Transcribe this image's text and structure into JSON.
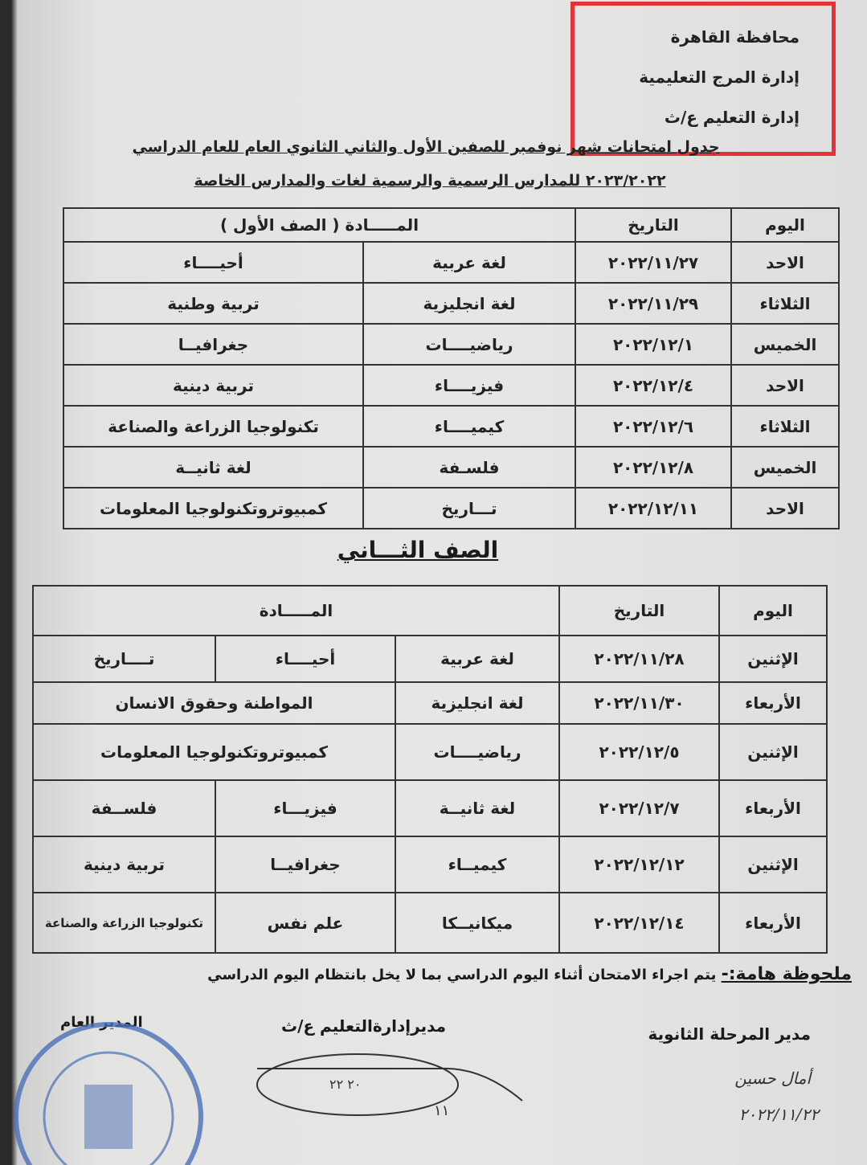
{
  "header": {
    "lines": [
      "محافظة القاهرة",
      "إدارة المرج التعليمية",
      "إدارة التعليم ع/ث"
    ],
    "highlight_color": "#e53238"
  },
  "title": {
    "line1": "جدول امتحانات شهر نوفمبر للصفين الأول والثاني الثانوي العام للعام الدراسي",
    "line2": "٢٠٢٣/٢٠٢٢ للمدارس الرسمية والرسمية لغات والمدارس الخاصة"
  },
  "table1": {
    "headers": {
      "day": "اليوم",
      "date": "التاريخ",
      "subject": "المـــــادة ( الصف الأول )"
    },
    "rows": [
      {
        "day": "الاحد",
        "date": "٢٠٢٢/١١/٢٧",
        "s1": "لغة عربية",
        "s2": "أحيــــاء"
      },
      {
        "day": "الثلاثاء",
        "date": "٢٠٢٢/١١/٢٩",
        "s1": "لغة انجليزية",
        "s2": "تربية وطنية"
      },
      {
        "day": "الخميس",
        "date": "٢٠٢٢/١٢/١",
        "s1": "رياضيــــات",
        "s2": "جغرافيــا"
      },
      {
        "day": "الاحد",
        "date": "٢٠٢٢/١٢/٤",
        "s1": "فيزيــــاء",
        "s2": "تربية دينية"
      },
      {
        "day": "الثلاثاء",
        "date": "٢٠٢٢/١٢/٦",
        "s1": "كيميــــاء",
        "s2": "تكنولوجيا الزراعة والصناعة"
      },
      {
        "day": "الخميس",
        "date": "٢٠٢٢/١٢/٨",
        "s1": "فلسـفة",
        "s2": "لغة ثانيــة"
      },
      {
        "day": "الاحد",
        "date": "٢٠٢٢/١٢/١١",
        "s1": "تـــاريخ",
        "s2": "كمبيوتروتكنولوجيا المعلومات"
      }
    ]
  },
  "section2_title": "الصف الثـــاني",
  "table2": {
    "headers": {
      "day": "اليوم",
      "date": "التاريخ",
      "subject": "المـــــادة"
    },
    "rows": [
      {
        "day": "الإثنين",
        "date": "٢٠٢٢/١١/٢٨",
        "cells": [
          "لغة عربية",
          "أحيــــاء",
          "تــــاريخ"
        ]
      },
      {
        "day": "الأربعاء",
        "date": "٢٠٢٢/١١/٣٠",
        "cells": [
          "لغة انجليزية",
          "المواطنة وحقوق الانسان"
        ]
      },
      {
        "day": "الإثنين",
        "date": "٢٠٢٢/١٢/٥",
        "cells": [
          "رياضيــــات",
          "كمبيوتروتكنولوجيا المعلومات"
        ]
      },
      {
        "day": "الأربعاء",
        "date": "٢٠٢٢/١٢/٧",
        "cells": [
          "لغة ثانيــة",
          "فيزيـــاء",
          "فلســفة"
        ]
      },
      {
        "day": "الإثنين",
        "date": "٢٠٢٢/١٢/١٢",
        "cells": [
          "كيميــاء",
          "جغرافيــا",
          "تربية دينية"
        ]
      },
      {
        "day": "الأربعاء",
        "date": "٢٠٢٢/١٢/١٤",
        "cells": [
          "ميكانيــكا",
          "علم نفس",
          "تكنولوجيا الزراعة والصناعة"
        ]
      }
    ]
  },
  "note": {
    "label": "ملحوظة هامة:-",
    "text": " يتم اجراء الامتحان أثناء اليوم الدراسي بما لا يخل بانتظام اليوم الدراسي"
  },
  "signatures": {
    "secondary_manager": "مدير المرحلة الثانوية",
    "secondary_signature": "أمال حسين",
    "secondary_date": "٢٠٢٢/١١/٢٢",
    "education_manager": "مديرإدارةالتعليم ع/ث",
    "general_manager": "المدير العام"
  },
  "stamp_color": "#4a6fb8"
}
